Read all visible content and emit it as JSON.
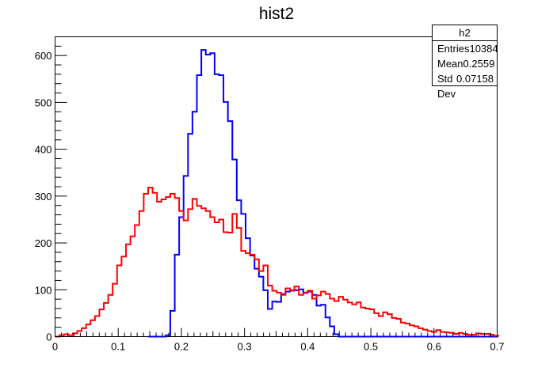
{
  "chart_data": {
    "type": "histogram",
    "title": "hist2",
    "xlim": [
      0,
      0.7
    ],
    "ylim": [
      0,
      640
    ],
    "x_ticks": [
      "0",
      "0.1",
      "0.2",
      "0.3",
      "0.4",
      "0.5",
      "0.6",
      "0.7"
    ],
    "y_ticks": [
      "0",
      "100",
      "200",
      "300",
      "400",
      "500",
      "600"
    ],
    "bin_width": 0.00702,
    "series": [
      {
        "color": "#0000ff",
        "x": [
          0.1474,
          0.1544,
          0.1614,
          0.1684,
          0.1754,
          0.1825,
          0.1895,
          0.1965,
          0.2035,
          0.2105,
          0.2175,
          0.2246,
          0.2316,
          0.2386,
          0.2456,
          0.2526,
          0.2596,
          0.2667,
          0.2737,
          0.2807,
          0.2877,
          0.2947,
          0.3018,
          0.3088,
          0.3158,
          0.3228,
          0.3298,
          0.3368,
          0.3439,
          0.3509,
          0.3579,
          0.3649,
          0.3719,
          0.3789,
          0.386,
          0.393,
          0.4,
          0.407,
          0.414,
          0.4211,
          0.4281,
          0.4351,
          0.4421,
          0.4491,
          0.4561,
          0.4632,
          0.4702,
          0.4772,
          0.4842,
          0.4912,
          0.4982,
          0.5053,
          0.5123,
          0.5193,
          0.5263,
          0.5333,
          0.5404,
          0.5474,
          0.5544,
          0.5614,
          0.5684,
          0.5754,
          0.5825,
          0.5895,
          0.5965,
          0.6035,
          0.6105,
          0.6175,
          0.6246,
          0.6316,
          0.6386,
          0.6456,
          0.6526,
          0.6596,
          0.6667,
          0.6737,
          0.6807,
          0.6877,
          0.6947
        ],
        "values": [
          0,
          0,
          0,
          0,
          3,
          55,
          175,
          255,
          343,
          433,
          480,
          558,
          612,
          602,
          605,
          560,
          558,
          501,
          460,
          378,
          291,
          262,
          210,
          173,
          145,
          128,
          99,
          59,
          75,
          74,
          91,
          96,
          99,
          99,
          101,
          94,
          96,
          89,
          66,
          68,
          41,
          22,
          5,
          0,
          0,
          0,
          0,
          0,
          0,
          0,
          0,
          0,
          0,
          0,
          0,
          0,
          0,
          0,
          0,
          0,
          0,
          0,
          0,
          0,
          0,
          0,
          0,
          0,
          0,
          0,
          0,
          0,
          0,
          0,
          0,
          0,
          0,
          0,
          0
        ]
      },
      {
        "color": "#ff0000",
        "x": [
          0.0,
          0.007,
          0.014,
          0.0211,
          0.0281,
          0.0351,
          0.0421,
          0.0491,
          0.0561,
          0.0632,
          0.0702,
          0.0772,
          0.0842,
          0.0912,
          0.0982,
          0.1053,
          0.1123,
          0.1193,
          0.1263,
          0.1333,
          0.1404,
          0.1474,
          0.1544,
          0.1614,
          0.1684,
          0.1754,
          0.1825,
          0.1895,
          0.1965,
          0.2035,
          0.2105,
          0.2175,
          0.2246,
          0.2316,
          0.2386,
          0.2456,
          0.2526,
          0.2596,
          0.2667,
          0.2737,
          0.2807,
          0.2877,
          0.2947,
          0.3018,
          0.3088,
          0.3158,
          0.3228,
          0.3298,
          0.3368,
          0.3439,
          0.3509,
          0.3579,
          0.3649,
          0.3719,
          0.3789,
          0.386,
          0.393,
          0.4,
          0.407,
          0.414,
          0.4211,
          0.4281,
          0.4351,
          0.4421,
          0.4491,
          0.4561,
          0.4632,
          0.4702,
          0.4772,
          0.4842,
          0.4912,
          0.4982,
          0.5053,
          0.5123,
          0.5193,
          0.5263,
          0.5333,
          0.5404,
          0.5474,
          0.5544,
          0.5614,
          0.5684,
          0.5754,
          0.5825,
          0.5895,
          0.5965,
          0.6035,
          0.6105,
          0.6175,
          0.6246,
          0.6316,
          0.6386,
          0.6456,
          0.6526,
          0.6596,
          0.6667,
          0.6737,
          0.6807,
          0.6877,
          0.6947
        ],
        "values": [
          0,
          3,
          5,
          3,
          7,
          12,
          18,
          26,
          35,
          44,
          58,
          72,
          89,
          113,
          152,
          171,
          197,
          214,
          238,
          268,
          305,
          318,
          307,
          288,
          293,
          298,
          305,
          296,
          268,
          248,
          272,
          294,
          279,
          274,
          268,
          255,
          244,
          250,
          223,
          222,
          262,
          232,
          183,
          178,
          175,
          165,
          140,
          152,
          109,
          98,
          94,
          89,
          103,
          98,
          107,
          89,
          93,
          98,
          81,
          88,
          96,
          91,
          81,
          76,
          85,
          79,
          73,
          69,
          73,
          62,
          60,
          58,
          50,
          44,
          52,
          48,
          40,
          38,
          30,
          28,
          24,
          22,
          18,
          15,
          12,
          10,
          14,
          10,
          9,
          8,
          6,
          8,
          6,
          4,
          4,
          7,
          6,
          6,
          4,
          2
        ]
      }
    ]
  },
  "stats": {
    "name": "h2",
    "rows": [
      {
        "label": "Entries",
        "value": "10384"
      },
      {
        "label": "Mean",
        "value": "0.2559"
      },
      {
        "label": "Std Dev",
        "value": "0.07158"
      }
    ]
  }
}
